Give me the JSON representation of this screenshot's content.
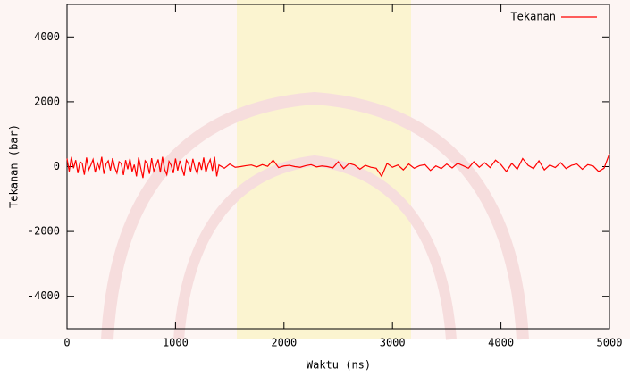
{
  "chart_data": {
    "type": "line",
    "xlabel": "Waktu (ns)",
    "ylabel": "Tekanan (bar)",
    "xlim": [
      0,
      5000
    ],
    "xticks": [
      0,
      1000,
      2000,
      3000,
      4000,
      5000
    ],
    "ylim": [
      -5000,
      5000
    ],
    "yticks": [
      -4000,
      -2000,
      0,
      2000,
      4000
    ],
    "legend": "top-right",
    "series": [
      {
        "name": "Tekanan",
        "color": "#ff0000",
        "x": [
          0,
          20,
          40,
          60,
          80,
          100,
          120,
          140,
          160,
          180,
          200,
          220,
          240,
          260,
          280,
          300,
          320,
          340,
          360,
          380,
          400,
          420,
          440,
          460,
          480,
          500,
          520,
          540,
          560,
          580,
          600,
          620,
          640,
          660,
          680,
          700,
          720,
          740,
          760,
          780,
          800,
          820,
          840,
          860,
          880,
          900,
          920,
          940,
          960,
          980,
          1000,
          1020,
          1040,
          1060,
          1080,
          1100,
          1120,
          1140,
          1160,
          1180,
          1200,
          1220,
          1240,
          1260,
          1280,
          1300,
          1320,
          1340,
          1360,
          1380,
          1400,
          1450,
          1500,
          1550,
          1600,
          1650,
          1700,
          1750,
          1800,
          1850,
          1900,
          1950,
          2000,
          2050,
          2100,
          2150,
          2200,
          2250,
          2300,
          2350,
          2400,
          2450,
          2500,
          2550,
          2600,
          2650,
          2700,
          2750,
          2800,
          2850,
          2900,
          2950,
          3000,
          3050,
          3100,
          3150,
          3200,
          3250,
          3300,
          3350,
          3400,
          3450,
          3500,
          3550,
          3600,
          3650,
          3700,
          3750,
          3800,
          3850,
          3900,
          3950,
          4000,
          4050,
          4100,
          4150,
          4200,
          4250,
          4300,
          4350,
          4400,
          4450,
          4500,
          4550,
          4600,
          4650,
          4700,
          4750,
          4800,
          4850,
          4900,
          4950,
          5000
        ],
        "values": [
          250,
          -150,
          300,
          -50,
          200,
          -200,
          150,
          100,
          -250,
          280,
          -100,
          50,
          220,
          -180,
          120,
          -60,
          300,
          -220,
          80,
          180,
          -120,
          260,
          -30,
          -200,
          150,
          90,
          -260,
          200,
          -80,
          240,
          -150,
          60,
          -300,
          280,
          -50,
          -350,
          180,
          100,
          -220,
          260,
          -140,
          30,
          220,
          -180,
          300,
          -90,
          -250,
          160,
          40,
          -200,
          250,
          -120,
          180,
          -60,
          -280,
          200,
          90,
          -150,
          240,
          -40,
          -220,
          150,
          -100,
          280,
          -180,
          60,
          220,
          -130,
          300,
          -300,
          50,
          -50,
          80,
          -20,
          0,
          30,
          50,
          -10,
          60,
          10,
          200,
          -30,
          20,
          40,
          0,
          -20,
          30,
          60,
          -10,
          20,
          0,
          -40,
          150,
          -60,
          100,
          50,
          -80,
          40,
          -20,
          -50,
          -300,
          100,
          -20,
          50,
          -100,
          80,
          -50,
          30,
          60,
          -120,
          20,
          -60,
          80,
          -40,
          100,
          30,
          -50,
          150,
          -20,
          120,
          -30,
          200,
          60,
          -150,
          100,
          -80,
          250,
          40,
          -60,
          180,
          -100,
          50,
          -30,
          120,
          -60,
          40,
          80,
          -80,
          60,
          20,
          -150,
          -50,
          400
        ]
      }
    ]
  }
}
